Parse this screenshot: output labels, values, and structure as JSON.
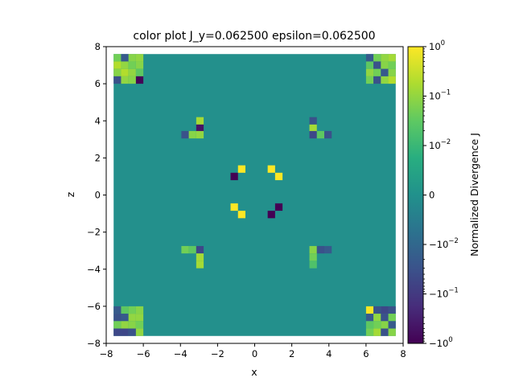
{
  "chart_data": {
    "type": "heatmap",
    "title": "color plot J_y=0.062500 epsilon=0.062500",
    "xlabel": "x",
    "ylabel": "z",
    "xlim": [
      -8,
      8
    ],
    "ylim": [
      -8,
      8
    ],
    "xticks": [
      -8,
      -6,
      -4,
      -2,
      0,
      2,
      4,
      6,
      8
    ],
    "yticks": [
      -8,
      -6,
      -4,
      -2,
      0,
      2,
      4,
      6,
      8
    ],
    "xtick_labels": [
      "−8",
      "−6",
      "−4",
      "−2",
      "0",
      "2",
      "4",
      "6",
      "8"
    ],
    "ytick_labels": [
      "−8",
      "−6",
      "−4",
      "−2",
      "0",
      "2",
      "4",
      "6",
      "8"
    ],
    "grid": false,
    "colormap": "viridis",
    "scale": "symlog",
    "cell_size": 0.4,
    "extent": [
      -7.6,
      7.6,
      -7.6,
      7.6
    ],
    "background_value": 0,
    "colorbar": {
      "label": "Normalized Divergence J",
      "range": [
        -1,
        1
      ],
      "linthresh": 0.01,
      "ticks": [
        {
          "value": 1,
          "label": "10",
          "exp": "0"
        },
        {
          "value": 0.1,
          "label": "10",
          "exp": "−1"
        },
        {
          "value": 0.01,
          "label": "10",
          "exp": "−2"
        },
        {
          "value": 0,
          "label": "0",
          "exp": ""
        },
        {
          "value": -0.01,
          "label": "−10",
          "exp": "−2"
        },
        {
          "value": -0.1,
          "label": "−10",
          "exp": "−1"
        },
        {
          "value": -1,
          "label": "−10",
          "exp": "0"
        }
      ]
    },
    "cells": [
      {
        "x": -7.4,
        "z": 7.4,
        "v": 0.05
      },
      {
        "x": -7.0,
        "z": 7.4,
        "v": -0.02
      },
      {
        "x": -6.6,
        "z": 7.4,
        "v": 0.08
      },
      {
        "x": -6.2,
        "z": 7.4,
        "v": 0.1
      },
      {
        "x": -7.4,
        "z": 7.0,
        "v": 0.2
      },
      {
        "x": -7.0,
        "z": 7.0,
        "v": 0.1
      },
      {
        "x": -6.6,
        "z": 7.0,
        "v": 0.05
      },
      {
        "x": -6.2,
        "z": 7.0,
        "v": 0.08
      },
      {
        "x": -7.4,
        "z": 6.6,
        "v": 0.08
      },
      {
        "x": -7.0,
        "z": 6.6,
        "v": 0.2
      },
      {
        "x": -6.6,
        "z": 6.6,
        "v": 0.1
      },
      {
        "x": -6.2,
        "z": 6.6,
        "v": 0.03
      },
      {
        "x": -7.4,
        "z": 6.2,
        "v": -0.03
      },
      {
        "x": -7.0,
        "z": 6.2,
        "v": 0.1
      },
      {
        "x": -6.6,
        "z": 6.2,
        "v": 0.08
      },
      {
        "x": -6.2,
        "z": 6.2,
        "v": -0.9
      },
      {
        "x": 6.2,
        "z": 7.4,
        "v": -0.02
      },
      {
        "x": 6.6,
        "z": 7.4,
        "v": 0.05
      },
      {
        "x": 7.0,
        "z": 7.4,
        "v": 0.1
      },
      {
        "x": 7.4,
        "z": 7.4,
        "v": 0.15
      },
      {
        "x": 6.2,
        "z": 7.0,
        "v": 0.03
      },
      {
        "x": 6.6,
        "z": 7.0,
        "v": -0.03
      },
      {
        "x": 7.0,
        "z": 7.0,
        "v": 0.08
      },
      {
        "x": 7.4,
        "z": 7.0,
        "v": 0.05
      },
      {
        "x": 6.2,
        "z": 6.6,
        "v": 0.1
      },
      {
        "x": 6.6,
        "z": 6.6,
        "v": 0.05
      },
      {
        "x": 7.0,
        "z": 6.6,
        "v": -0.02
      },
      {
        "x": 7.4,
        "z": 6.6,
        "v": 0.08
      },
      {
        "x": 6.2,
        "z": 6.2,
        "v": 0.05
      },
      {
        "x": 6.6,
        "z": 6.2,
        "v": -0.03
      },
      {
        "x": 7.0,
        "z": 6.2,
        "v": 0.1
      },
      {
        "x": 7.4,
        "z": 6.2,
        "v": 0.2
      },
      {
        "x": -7.4,
        "z": -6.2,
        "v": -0.02
      },
      {
        "x": -7.0,
        "z": -6.2,
        "v": 0.03
      },
      {
        "x": -6.6,
        "z": -6.2,
        "v": 0.05
      },
      {
        "x": -6.2,
        "z": -6.2,
        "v": 0.08
      },
      {
        "x": -7.4,
        "z": -6.6,
        "v": -0.03
      },
      {
        "x": -7.0,
        "z": -6.6,
        "v": -0.02
      },
      {
        "x": -6.6,
        "z": -6.6,
        "v": 0.1
      },
      {
        "x": -6.2,
        "z": -6.6,
        "v": 0.1
      },
      {
        "x": -7.4,
        "z": -7.0,
        "v": 0.05
      },
      {
        "x": -7.0,
        "z": -7.0,
        "v": 0.1
      },
      {
        "x": -6.6,
        "z": -7.0,
        "v": 0.08
      },
      {
        "x": -6.2,
        "z": -7.0,
        "v": 0.05
      },
      {
        "x": -7.4,
        "z": -7.4,
        "v": -0.05
      },
      {
        "x": -7.0,
        "z": -7.4,
        "v": -0.05
      },
      {
        "x": -6.6,
        "z": -7.4,
        "v": -0.03
      },
      {
        "x": -6.2,
        "z": -7.4,
        "v": 0.1
      },
      {
        "x": 6.2,
        "z": -6.2,
        "v": 0.9
      },
      {
        "x": 6.6,
        "z": -6.2,
        "v": -0.03
      },
      {
        "x": 7.0,
        "z": -6.2,
        "v": -0.05
      },
      {
        "x": 7.4,
        "z": -6.2,
        "v": -0.03
      },
      {
        "x": 6.2,
        "z": -6.6,
        "v": -0.02
      },
      {
        "x": 6.6,
        "z": -6.6,
        "v": 0.1
      },
      {
        "x": 7.0,
        "z": -6.6,
        "v": -0.03
      },
      {
        "x": 7.4,
        "z": -6.6,
        "v": 0.05
      },
      {
        "x": 6.2,
        "z": -7.0,
        "v": 0.03
      },
      {
        "x": 6.6,
        "z": -7.0,
        "v": 0.05
      },
      {
        "x": 7.0,
        "z": -7.0,
        "v": 0.08
      },
      {
        "x": 7.4,
        "z": -7.0,
        "v": -0.02
      },
      {
        "x": 6.2,
        "z": -7.4,
        "v": 0.05
      },
      {
        "x": 6.6,
        "z": -7.4,
        "v": 0.15
      },
      {
        "x": 7.0,
        "z": -7.4,
        "v": -0.03
      },
      {
        "x": 7.4,
        "z": -7.4,
        "v": 0.08
      },
      {
        "x": -2.95,
        "z": 4.0,
        "v": 0.15
      },
      {
        "x": -2.95,
        "z": 3.6,
        "v": -0.5
      },
      {
        "x": -3.75,
        "z": 3.25,
        "v": -0.03
      },
      {
        "x": -3.35,
        "z": 3.25,
        "v": 0.08
      },
      {
        "x": -2.95,
        "z": 3.25,
        "v": 0.1
      },
      {
        "x": 3.15,
        "z": 4.0,
        "v": -0.03
      },
      {
        "x": 3.15,
        "z": 3.6,
        "v": 0.15
      },
      {
        "x": 3.15,
        "z": 3.25,
        "v": -0.05
      },
      {
        "x": 3.55,
        "z": 3.25,
        "v": 0.03
      },
      {
        "x": 3.95,
        "z": 3.25,
        "v": -0.03
      },
      {
        "x": -3.75,
        "z": -2.95,
        "v": 0.05
      },
      {
        "x": -3.35,
        "z": -2.95,
        "v": 0.03
      },
      {
        "x": -2.95,
        "z": -2.95,
        "v": -0.05
      },
      {
        "x": -2.95,
        "z": -3.35,
        "v": 0.15
      },
      {
        "x": -2.95,
        "z": -3.75,
        "v": 0.15
      },
      {
        "x": 3.15,
        "z": -2.95,
        "v": 0.08
      },
      {
        "x": 3.55,
        "z": -2.95,
        "v": -0.03
      },
      {
        "x": 3.95,
        "z": -2.95,
        "v": -0.02
      },
      {
        "x": 3.15,
        "z": -3.35,
        "v": 0.05
      },
      {
        "x": 3.15,
        "z": -3.75,
        "v": 0.02
      },
      {
        "x": -0.7,
        "z": 1.4,
        "v": 1.0
      },
      {
        "x": -1.1,
        "z": 1.0,
        "v": -1.0
      },
      {
        "x": 0.9,
        "z": 1.4,
        "v": 1.0
      },
      {
        "x": 1.3,
        "z": 1.0,
        "v": 1.0
      },
      {
        "x": -1.1,
        "z": -0.65,
        "v": 1.0
      },
      {
        "x": -0.7,
        "z": -1.05,
        "v": 1.0
      },
      {
        "x": 1.3,
        "z": -0.65,
        "v": -1.0
      },
      {
        "x": 0.9,
        "z": -1.05,
        "v": -1.0
      }
    ]
  }
}
